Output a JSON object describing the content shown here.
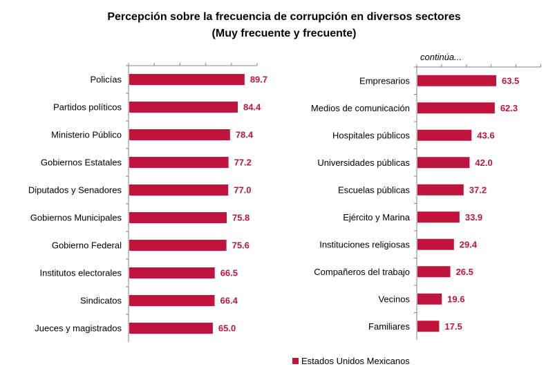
{
  "title_line1": "Percepción sobre la frecuencia de corrupción en diversos sectores",
  "title_line2": "(Muy frecuente y frecuente)",
  "continuation_note": "continúa...",
  "legend_label": "Estados Unidos Mexicanos",
  "colors": {
    "bar": "#C0143C",
    "value_text": "#C0143C",
    "axis": "#808080"
  },
  "chart_data": [
    {
      "type": "bar",
      "orientation": "horizontal",
      "categories": [
        "Policías",
        "Partidos políticos",
        "Ministerio Público",
        "Gobiernos Estatales",
        "Diputados y Senadores",
        "Gobiernos Municipales",
        "Gobierno Federal",
        "Institutos electorales",
        "Sindicatos",
        "Jueces y magistrados"
      ],
      "series": [
        {
          "name": "Estados Unidos Mexicanos",
          "values": [
            89.7,
            84.4,
            78.4,
            77.2,
            77.0,
            75.8,
            75.6,
            66.5,
            66.4,
            65.0
          ]
        }
      ],
      "value_labels": [
        "89.7",
        "84.4",
        "78.4",
        "77.2",
        "77.0",
        "75.8",
        "75.6",
        "66.5",
        "66.4",
        "65.0"
      ],
      "xlim": [
        0,
        100
      ],
      "grid": false
    },
    {
      "type": "bar",
      "orientation": "horizontal",
      "categories": [
        "Empresarios",
        "Medios de comunicación",
        "Hospitales públicos",
        "Universidades públicas",
        "Escuelas públicas",
        "Ejército y Marina",
        "Instituciones religiosas",
        "Compañeros del trabajo",
        "Vecinos",
        "Familiares"
      ],
      "series": [
        {
          "name": "Estados Unidos Mexicanos",
          "values": [
            63.5,
            62.3,
            43.6,
            42.0,
            37.2,
            33.9,
            29.4,
            26.5,
            19.6,
            17.5
          ]
        }
      ],
      "value_labels": [
        "63.5",
        "62.3",
        "43.6",
        "42.0",
        "37.2",
        "33.9",
        "29.4",
        "26.5",
        "19.6",
        "17.5"
      ],
      "xlim": [
        0,
        100
      ],
      "grid": false
    }
  ]
}
